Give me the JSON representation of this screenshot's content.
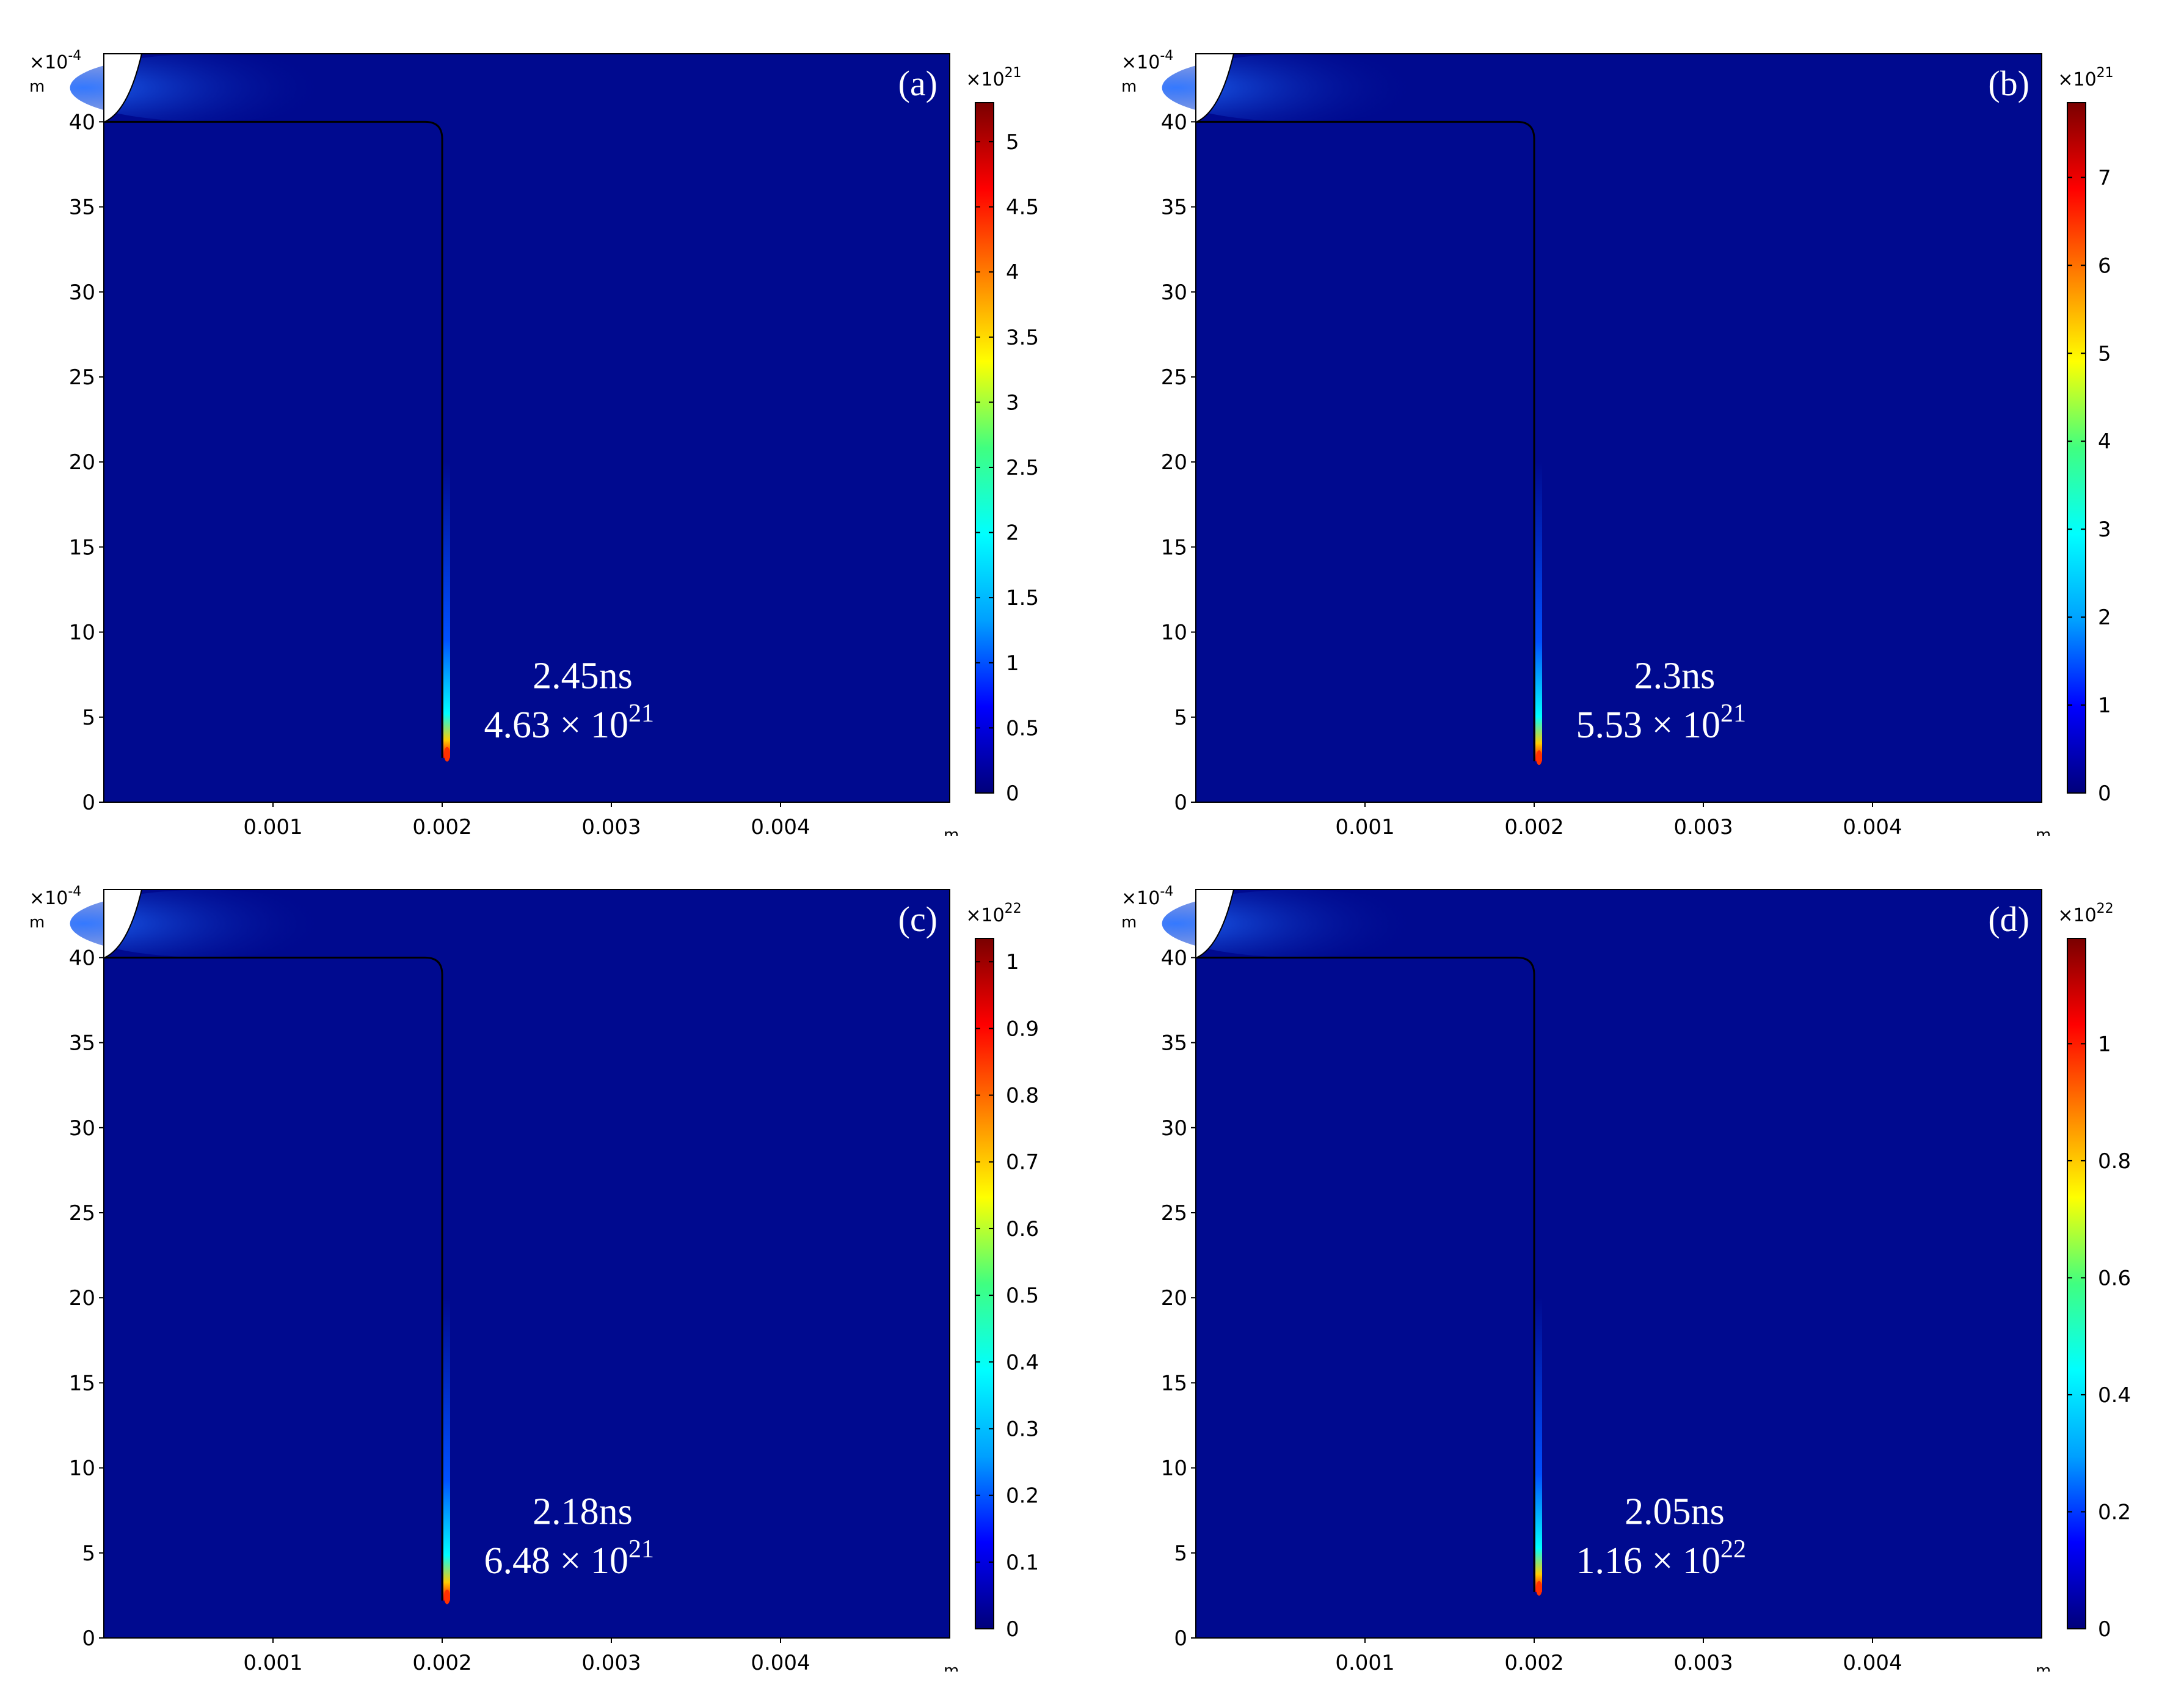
{
  "chart_data": [
    {
      "type": "heatmap",
      "panel_label": "(a)",
      "time_label": "2.45ns",
      "peak_mantissa": "4.63 × 10",
      "peak_exponent": "21",
      "peak_value": 4.63e+21,
      "x_unit": "m",
      "y_unit": "m",
      "y_multiplier_base": "×10",
      "y_multiplier_exp": "-4",
      "xlim": [
        0,
        0.005
      ],
      "ylim": [
        0,
        44
      ],
      "x_ticks": [
        "0.001",
        "0.002",
        "0.003",
        "0.004"
      ],
      "y_ticks": [
        "0",
        "5",
        "10",
        "15",
        "20",
        "25",
        "30",
        "35",
        "40"
      ],
      "colorbar_multiplier_base": "×10",
      "colorbar_multiplier_exp": "21",
      "colorbar_max": 5.3,
      "colorbar_ticks": [
        {
          "v": 0,
          "label": "0"
        },
        {
          "v": 0.5,
          "label": "0.5"
        },
        {
          "v": 1,
          "label": "1"
        },
        {
          "v": 1.5,
          "label": "1.5"
        },
        {
          "v": 2,
          "label": "2"
        },
        {
          "v": 2.5,
          "label": "2.5"
        },
        {
          "v": 3,
          "label": "3"
        },
        {
          "v": 3.5,
          "label": "3.5"
        },
        {
          "v": 4,
          "label": "4"
        },
        {
          "v": 4.5,
          "label": "4.5"
        },
        {
          "v": 5,
          "label": "5"
        }
      ],
      "colormap": "rainbow",
      "streamer_tip_y": 2.6
    },
    {
      "type": "heatmap",
      "panel_label": "(b)",
      "time_label": "2.3ns",
      "peak_mantissa": "5.53 × 10",
      "peak_exponent": "21",
      "peak_value": 5.53e+21,
      "x_unit": "m",
      "y_unit": "m",
      "y_multiplier_base": "×10",
      "y_multiplier_exp": "-4",
      "xlim": [
        0,
        0.005
      ],
      "ylim": [
        0,
        44
      ],
      "x_ticks": [
        "0.001",
        "0.002",
        "0.003",
        "0.004"
      ],
      "y_ticks": [
        "0",
        "5",
        "10",
        "15",
        "20",
        "25",
        "30",
        "35",
        "40"
      ],
      "colorbar_multiplier_base": "×10",
      "colorbar_multiplier_exp": "21",
      "colorbar_max": 7.85,
      "colorbar_ticks": [
        {
          "v": 0,
          "label": "0"
        },
        {
          "v": 1,
          "label": "1"
        },
        {
          "v": 2,
          "label": "2"
        },
        {
          "v": 3,
          "label": "3"
        },
        {
          "v": 4,
          "label": "4"
        },
        {
          "v": 5,
          "label": "5"
        },
        {
          "v": 6,
          "label": "6"
        },
        {
          "v": 7,
          "label": "7"
        }
      ],
      "colormap": "rainbow",
      "streamer_tip_y": 2.4
    },
    {
      "type": "heatmap",
      "panel_label": "(c)",
      "time_label": "2.18ns",
      "peak_mantissa": "6.48 × 10",
      "peak_exponent": "21",
      "peak_value": 6.48e+21,
      "x_unit": "m",
      "y_unit": "m",
      "y_multiplier_base": "×10",
      "y_multiplier_exp": "-4",
      "xlim": [
        0,
        0.005
      ],
      "ylim": [
        0,
        44
      ],
      "x_ticks": [
        "0.001",
        "0.002",
        "0.003",
        "0.004"
      ],
      "y_ticks": [
        "0",
        "5",
        "10",
        "15",
        "20",
        "25",
        "30",
        "35",
        "40"
      ],
      "colorbar_multiplier_base": "×10",
      "colorbar_multiplier_exp": "22",
      "colorbar_max": 1.035,
      "colorbar_ticks": [
        {
          "v": 0,
          "label": "0"
        },
        {
          "v": 0.1,
          "label": "0.1"
        },
        {
          "v": 0.2,
          "label": "0.2"
        },
        {
          "v": 0.3,
          "label": "0.3"
        },
        {
          "v": 0.4,
          "label": "0.4"
        },
        {
          "v": 0.5,
          "label": "0.5"
        },
        {
          "v": 0.6,
          "label": "0.6"
        },
        {
          "v": 0.7,
          "label": "0.7"
        },
        {
          "v": 0.8,
          "label": "0.8"
        },
        {
          "v": 0.9,
          "label": "0.9"
        },
        {
          "v": 1,
          "label": "1"
        }
      ],
      "colormap": "rainbow",
      "streamer_tip_y": 2.2
    },
    {
      "type": "heatmap",
      "panel_label": "(d)",
      "time_label": "2.05ns",
      "peak_mantissa": "1.16 × 10",
      "peak_exponent": "22",
      "peak_value": 1.16e+22,
      "x_unit": "m",
      "y_unit": "m",
      "y_multiplier_base": "×10",
      "y_multiplier_exp": "-4",
      "xlim": [
        0,
        0.005
      ],
      "ylim": [
        0,
        44
      ],
      "x_ticks": [
        "0.001",
        "0.002",
        "0.003",
        "0.004"
      ],
      "y_ticks": [
        "0",
        "5",
        "10",
        "15",
        "20",
        "25",
        "30",
        "35",
        "40"
      ],
      "colorbar_multiplier_base": "×10",
      "colorbar_multiplier_exp": "22",
      "colorbar_max": 1.18,
      "colorbar_ticks": [
        {
          "v": 0,
          "label": "0"
        },
        {
          "v": 0.2,
          "label": "0.2"
        },
        {
          "v": 0.4,
          "label": "0.4"
        },
        {
          "v": 0.6,
          "label": "0.6"
        },
        {
          "v": 0.8,
          "label": "0.8"
        },
        {
          "v": 1,
          "label": "1"
        }
      ],
      "colormap": "rainbow",
      "streamer_tip_y": 2.7
    }
  ],
  "colors": {
    "background_field": "#000a8f",
    "electrode_edge": "#000000",
    "annotation_text": "#ffffff",
    "colormap_stops": [
      "#00007a",
      "#0000ff",
      "#00a0ff",
      "#00ffff",
      "#40ff80",
      "#ffff00",
      "#ff8000",
      "#ff0000",
      "#7a0000"
    ]
  }
}
